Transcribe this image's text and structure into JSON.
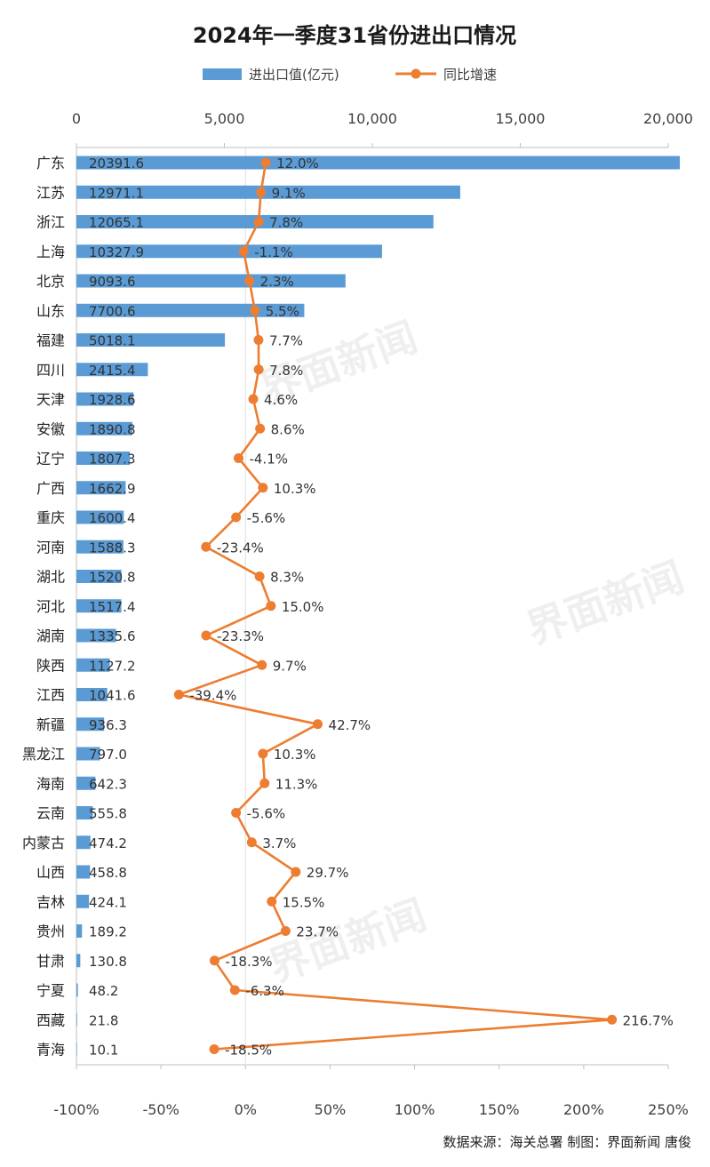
{
  "chart_data": {
    "type": "bar+line",
    "title": "2024年一季度31省份进出口情况",
    "legend": [
      {
        "label": "进出口值(亿元)",
        "color": "#5b9bd5",
        "kind": "bar"
      },
      {
        "label": "同比增速",
        "color": "#ed7d31",
        "kind": "line"
      }
    ],
    "top_axis": {
      "min": 0,
      "max": 20000,
      "ticks": [
        0,
        5000,
        10000,
        15000,
        20000
      ],
      "tick_labels": [
        "0",
        "5,000",
        "10,000",
        "15,000",
        "20,000"
      ]
    },
    "bottom_axis": {
      "min": -100,
      "max": 250,
      "ticks": [
        -100,
        -50,
        0,
        50,
        100,
        150,
        200,
        250
      ],
      "tick_labels": [
        "-100%",
        "-50%",
        "0%",
        "50%",
        "100%",
        "150%",
        "200%",
        "250%"
      ]
    },
    "categories": [
      "广东",
      "江苏",
      "浙江",
      "上海",
      "北京",
      "山东",
      "福建",
      "四川",
      "天津",
      "安徽",
      "辽宁",
      "广西",
      "重庆",
      "河南",
      "湖北",
      "河北",
      "湖南",
      "陕西",
      "江西",
      "新疆",
      "黑龙江",
      "海南",
      "云南",
      "内蒙古",
      "山西",
      "吉林",
      "贵州",
      "甘肃",
      "宁夏",
      "西藏",
      "青海"
    ],
    "series": [
      {
        "name": "进出口值(亿元)",
        "values": [
          20391.6,
          12971.1,
          12065.1,
          10327.9,
          9093.6,
          7700.6,
          5018.1,
          2415.4,
          1928.6,
          1890.8,
          1807.3,
          1662.9,
          1600.4,
          1588.3,
          1520.8,
          1517.4,
          1335.6,
          1127.2,
          1041.6,
          936.3,
          797.0,
          642.3,
          555.8,
          474.2,
          458.8,
          424.1,
          189.2,
          130.8,
          48.2,
          21.8,
          10.1
        ],
        "labels": [
          "20391.6",
          "12971.1",
          "12065.1",
          "10327.9",
          "9093.6",
          "7700.6",
          "5018.1",
          "2415.4",
          "1928.6",
          "1890.8",
          "1807.3",
          "1662.9",
          "1600.4",
          "1588.3",
          "1520.8",
          "1517.4",
          "1335.6",
          "1127.2",
          "1041.6",
          "936.3",
          "797.0",
          "642.3",
          "555.8",
          "474.2",
          "458.8",
          "424.1",
          "189.2",
          "130.8",
          "48.2",
          "21.8",
          "10.1"
        ]
      },
      {
        "name": "同比增速",
        "values": [
          12.0,
          9.1,
          7.8,
          -1.1,
          2.3,
          5.5,
          7.7,
          7.8,
          4.6,
          8.6,
          -4.1,
          10.3,
          -5.6,
          -23.4,
          8.3,
          15.0,
          -23.3,
          9.7,
          -39.4,
          42.7,
          10.3,
          11.3,
          -5.6,
          3.7,
          29.7,
          15.5,
          23.7,
          -18.3,
          -6.3,
          216.7,
          -18.5
        ],
        "labels": [
          "12.0%",
          "9.1%",
          "7.8%",
          "-1.1%",
          "2.3%",
          "5.5%",
          "7.7%",
          "7.8%",
          "4.6%",
          "8.6%",
          "-4.1%",
          "10.3%",
          "-5.6%",
          "-23.4%",
          "8.3%",
          "15.0%",
          "-23.3%",
          "9.7%",
          "-39.4%",
          "42.7%",
          "10.3%",
          "11.3%",
          "-5.6%",
          "3.7%",
          "29.7%",
          "15.5%",
          "23.7%",
          "-18.3%",
          "-6.3%",
          "216.7%",
          "-18.5%"
        ]
      }
    ]
  },
  "source": "数据来源：海关总署  制图：界面新闻 唐俊",
  "watermark": "界面新闻"
}
